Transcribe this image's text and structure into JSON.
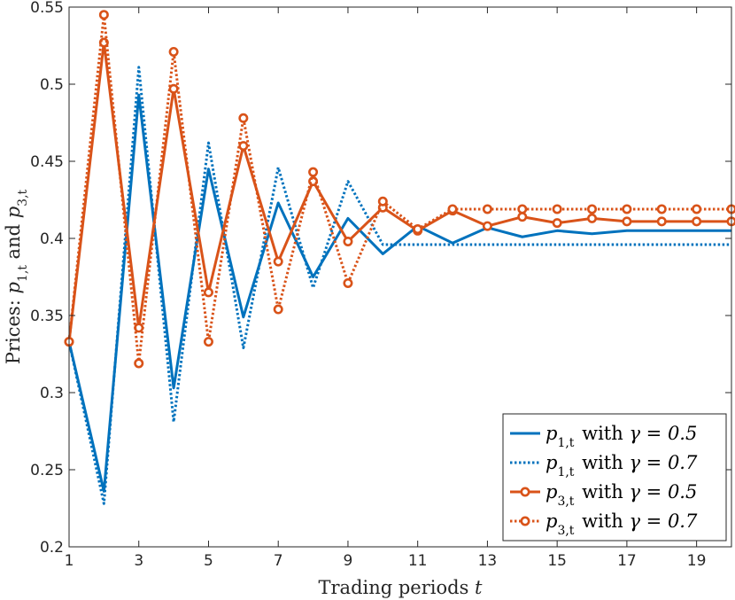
{
  "chart_data": {
    "type": "line",
    "title": "",
    "xlabel": "Trading periods t",
    "ylabel": "Prices: p1,t and p3,t",
    "xlim": [
      1,
      20
    ],
    "ylim": [
      0.2,
      0.55
    ],
    "x_ticks": [
      "1",
      "3",
      "5",
      "7",
      "9",
      "11",
      "13",
      "15",
      "17",
      "19"
    ],
    "y_ticks": [
      "0.2",
      "0.25",
      "0.3",
      "0.35",
      "0.4",
      "0.45",
      "0.5",
      "0.55"
    ],
    "grid": false,
    "legend_position": "bottom-right",
    "x": [
      1,
      2,
      3,
      4,
      5,
      6,
      7,
      8,
      9,
      10,
      11,
      12,
      13,
      14,
      15,
      16,
      17,
      18,
      19,
      20
    ],
    "series": [
      {
        "name": "p1,t with γ = 0.5",
        "legend": {
          "var": "p",
          "sub": "1,t",
          "text": " with ",
          "gamma": "γ = 0.5"
        },
        "color": "#0072BD",
        "dash": "solid",
        "marker": "none",
        "values": [
          0.333,
          0.236,
          0.493,
          0.303,
          0.445,
          0.349,
          0.423,
          0.375,
          0.413,
          0.39,
          0.408,
          0.397,
          0.407,
          0.401,
          0.405,
          0.403,
          0.405,
          0.405,
          0.405,
          0.405
        ]
      },
      {
        "name": "p1,t with γ = 0.7",
        "legend": {
          "var": "p",
          "sub": "1,t",
          "text": " with ",
          "gamma": "γ = 0.7"
        },
        "color": "#0072BD",
        "dash": "dotted",
        "marker": "none",
        "values": [
          0.333,
          0.228,
          0.511,
          0.281,
          0.462,
          0.329,
          0.446,
          0.368,
          0.437,
          0.396,
          0.396,
          0.396,
          0.396,
          0.396,
          0.396,
          0.396,
          0.396,
          0.396,
          0.396,
          0.396
        ]
      },
      {
        "name": "p3,t with γ = 0.5",
        "legend": {
          "var": "p",
          "sub": "3,t",
          "text": " with ",
          "gamma": "γ = 0.5"
        },
        "color": "#D95319",
        "dash": "solid",
        "marker": "circle",
        "values": [
          0.333,
          0.527,
          0.342,
          0.497,
          0.365,
          0.46,
          0.385,
          0.437,
          0.398,
          0.42,
          0.405,
          0.418,
          0.408,
          0.414,
          0.41,
          0.413,
          0.411,
          0.411,
          0.411,
          0.411
        ]
      },
      {
        "name": "p3,t with γ = 0.7",
        "legend": {
          "var": "p",
          "sub": "3,t",
          "text": " with ",
          "gamma": "γ = 0.7"
        },
        "color": "#D95319",
        "dash": "dotted",
        "marker": "circle",
        "values": [
          0.333,
          0.545,
          0.319,
          0.521,
          0.333,
          0.478,
          0.354,
          0.443,
          0.371,
          0.424,
          0.406,
          0.419,
          0.419,
          0.419,
          0.419,
          0.419,
          0.419,
          0.419,
          0.419,
          0.419
        ]
      }
    ]
  }
}
